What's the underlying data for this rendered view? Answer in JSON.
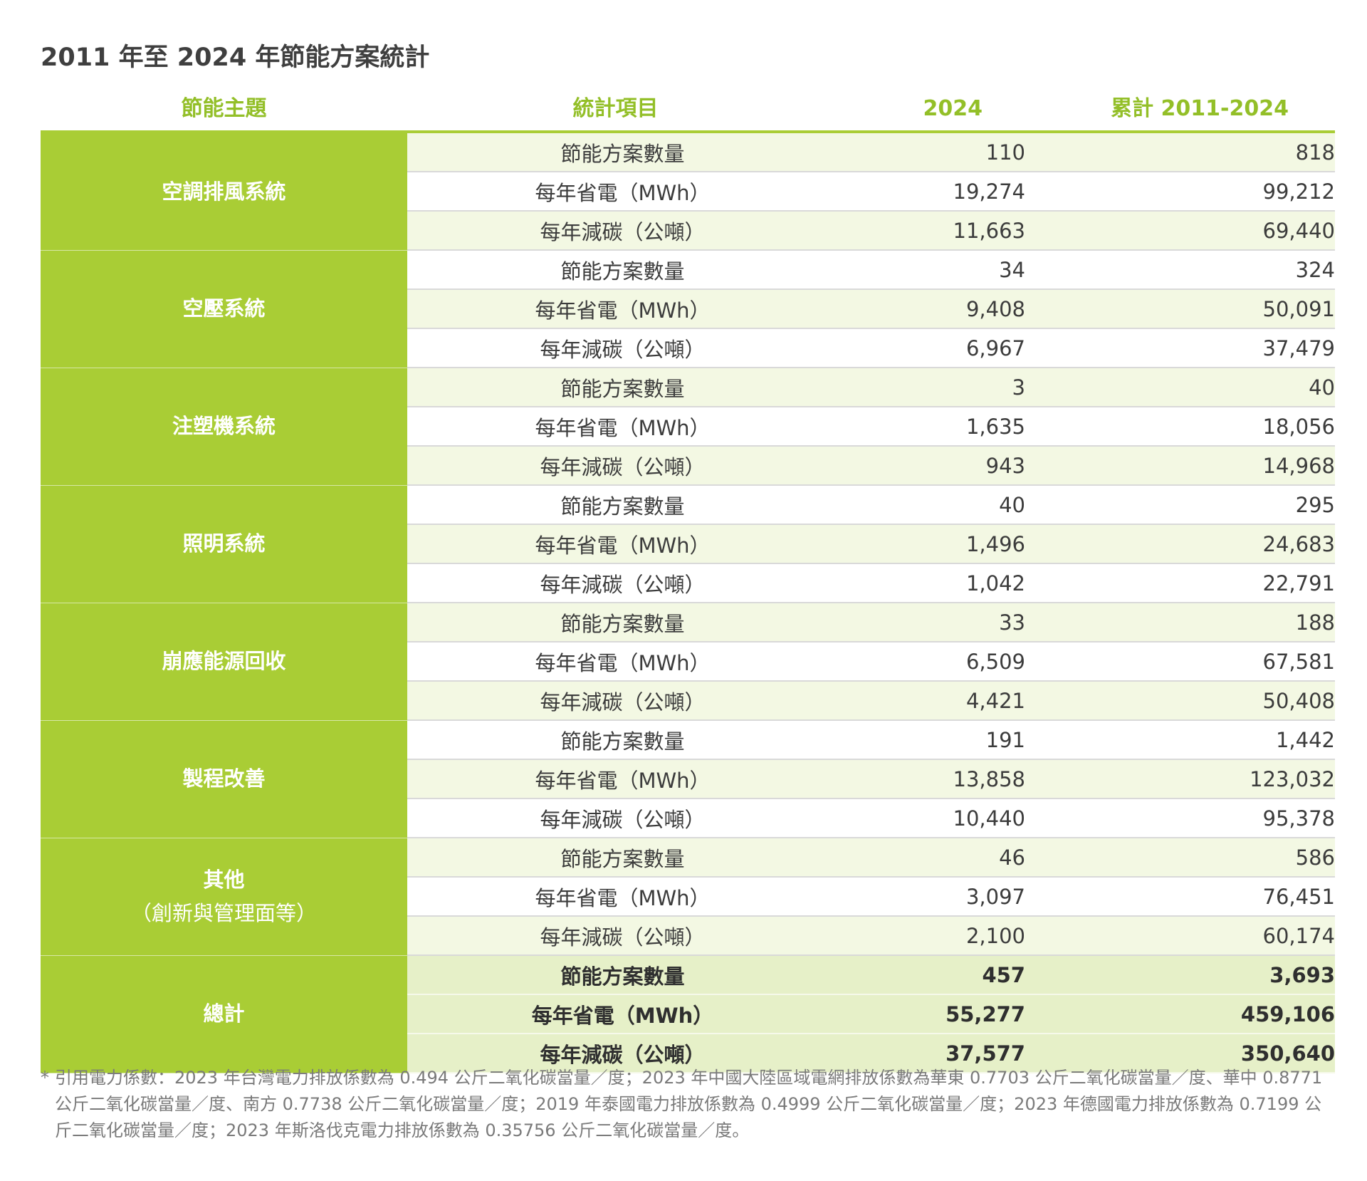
{
  "title": "2011 年至 2024 年節能方案統計",
  "headers": {
    "topic": "節能主題",
    "item": "統計項目",
    "year": "2024",
    "cumulative": "累計 2011-2024"
  },
  "groups": [
    {
      "topic": "空調排風系統",
      "rows": [
        {
          "item": "節能方案數量",
          "y2024": "110",
          "cum": "818"
        },
        {
          "item": "每年省電（MWh）",
          "y2024": "19,274",
          "cum": "99,212"
        },
        {
          "item": "每年減碳（公噸）",
          "y2024": "11,663",
          "cum": "69,440"
        }
      ]
    },
    {
      "topic": "空壓系統",
      "rows": [
        {
          "item": "節能方案數量",
          "y2024": "34",
          "cum": "324"
        },
        {
          "item": "每年省電（MWh）",
          "y2024": "9,408",
          "cum": "50,091"
        },
        {
          "item": "每年減碳（公噸）",
          "y2024": "6,967",
          "cum": "37,479"
        }
      ]
    },
    {
      "topic": "注塑機系統",
      "rows": [
        {
          "item": "節能方案數量",
          "y2024": "3",
          "cum": "40"
        },
        {
          "item": "每年省電（MWh）",
          "y2024": "1,635",
          "cum": "18,056"
        },
        {
          "item": "每年減碳（公噸）",
          "y2024": "943",
          "cum": "14,968"
        }
      ]
    },
    {
      "topic": "照明系統",
      "rows": [
        {
          "item": "節能方案數量",
          "y2024": "40",
          "cum": "295"
        },
        {
          "item": "每年省電（MWh）",
          "y2024": "1,496",
          "cum": "24,683"
        },
        {
          "item": "每年減碳（公噸）",
          "y2024": "1,042",
          "cum": "22,791"
        }
      ]
    },
    {
      "topic": "崩應能源回收",
      "rows": [
        {
          "item": "節能方案數量",
          "y2024": "33",
          "cum": "188"
        },
        {
          "item": "每年省電（MWh）",
          "y2024": "6,509",
          "cum": "67,581"
        },
        {
          "item": "每年減碳（公噸）",
          "y2024": "4,421",
          "cum": "50,408"
        }
      ]
    },
    {
      "topic": "製程改善",
      "rows": [
        {
          "item": "節能方案數量",
          "y2024": "191",
          "cum": "1,442"
        },
        {
          "item": "每年省電（MWh）",
          "y2024": "13,858",
          "cum": "123,032"
        },
        {
          "item": "每年減碳（公噸）",
          "y2024": "10,440",
          "cum": "95,378"
        }
      ]
    },
    {
      "topic": "其他",
      "topic_sub": "（創新與管理面等）",
      "rows": [
        {
          "item": "節能方案數量",
          "y2024": "46",
          "cum": "586"
        },
        {
          "item": "每年省電（MWh）",
          "y2024": "3,097",
          "cum": "76,451"
        },
        {
          "item": "每年減碳（公噸）",
          "y2024": "2,100",
          "cum": "60,174"
        }
      ]
    }
  ],
  "total": {
    "topic": "總計",
    "rows": [
      {
        "item": "節能方案數量",
        "y2024": "457",
        "cum": "3,693"
      },
      {
        "item": "每年省電（MWh）",
        "y2024": "55,277",
        "cum": "459,106"
      },
      {
        "item": "每年減碳（公噸）",
        "y2024": "37,577",
        "cum": "350,640"
      }
    ]
  },
  "footnote_star": "*",
  "footnote": "引用電力係數：2023 年台灣電力排放係數為 0.494 公斤二氧化碳當量／度；2023 年中國大陸區域電網排放係數為華東 0.7703 公斤二氧化碳當量／度、華中 0.8771 公斤二氧化碳當量／度、南方 0.7738 公斤二氧化碳當量／度；2019 年泰國電力排放係數為 0.4999 公斤二氧化碳當量／度；2023 年德國電力排放係數為 0.7199 公斤二氧化碳當量／度；2023 年斯洛伐克電力排放係數為 0.35756 公斤二氧化碳當量／度。",
  "colors": {
    "accent": "#a9cd35",
    "header_text": "#93bf28",
    "band": "#f3f8e3",
    "total_band": "#e6f0c8"
  }
}
